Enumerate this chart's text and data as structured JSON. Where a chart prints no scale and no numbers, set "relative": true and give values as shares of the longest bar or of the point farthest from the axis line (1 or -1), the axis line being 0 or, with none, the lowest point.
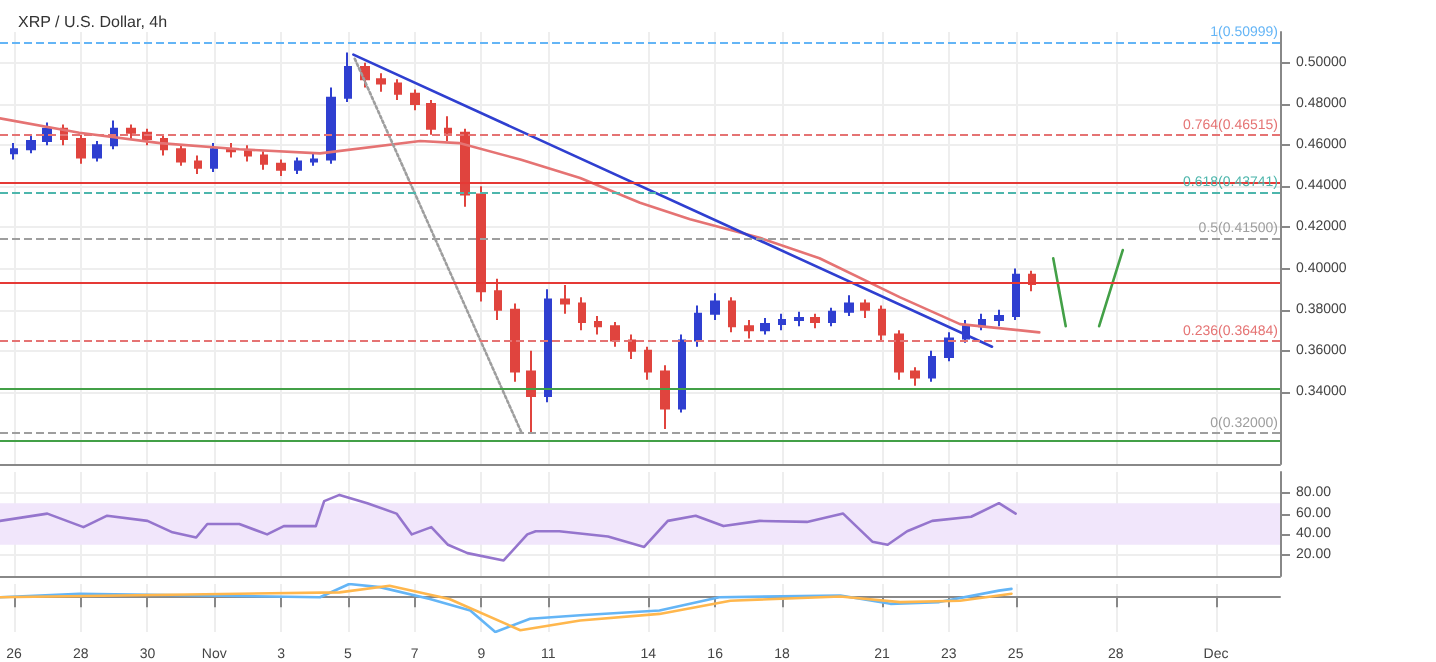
{
  "chart_data": [
    {
      "type": "candlestick",
      "title": "XRP / U.S. Dollar, 4h",
      "tick_labels": "y",
      "grid": true,
      "x": [
        "--10-26T00:00",
        "--10-26T12:00",
        "--10-27T00:00",
        "--10-27T12:00",
        "--10-28T00:00",
        "--10-28T12:00",
        "--10-29T00:00",
        "--10-29T12:00",
        "--10-30T00:00",
        "--10-30T12:00",
        "--10-31T00:00",
        "--10-31T12:00",
        "--11-01T00:00",
        "--11-01T12:00",
        "--11-02T00:00",
        "--11-02T12:00",
        "--11-03T00:00",
        "--11-03T12:00",
        "--11-04T00:00",
        "--11-04T12:00",
        "--11-05T00:00",
        "--11-05T12:00",
        "--11-06T00:00",
        "--11-06T12:00",
        "--11-07T00:00",
        "--11-07T12:00",
        "--11-08T00:00",
        "--11-08T12:00",
        "--11-09T00:00",
        "--11-09T12:00",
        "--11-10T00:00",
        "--11-10T12:00",
        "--11-11T00:00",
        "--11-11T12:00",
        "--11-12T00:00",
        "--11-12T12:00",
        "--11-13T00:00",
        "--11-13T12:00",
        "--11-14T00:00",
        "--11-14T12:00",
        "--11-15T00:00",
        "--11-15T12:00",
        "--11-16T00:00",
        "--11-16T12:00",
        "--11-17T00:00",
        "--11-17T12:00",
        "--11-18T00:00",
        "--11-18T12:00",
        "--11-19T00:00",
        "--11-19T12:00",
        "--11-20T00:00",
        "--11-20T12:00",
        "--11-21T00:00",
        "--11-21T12:00",
        "--11-22T00:00",
        "--11-22T12:00",
        "--11-23T00:00",
        "--11-23T12:00",
        "--11-24T00:00",
        "--11-24T12:00",
        "--11-25T00:00",
        "--11-25T12:00"
      ],
      "ohlc": [
        [
          0.456,
          0.461,
          0.453,
          0.458
        ],
        [
          0.458,
          0.465,
          0.456,
          0.462
        ],
        [
          0.462,
          0.471,
          0.46,
          0.468
        ],
        [
          0.468,
          0.47,
          0.46,
          0.463
        ],
        [
          0.463,
          0.465,
          0.451,
          0.454
        ],
        [
          0.454,
          0.462,
          0.452,
          0.46
        ],
        [
          0.46,
          0.472,
          0.458,
          0.468
        ],
        [
          0.468,
          0.47,
          0.463,
          0.466
        ],
        [
          0.466,
          0.468,
          0.46,
          0.463
        ],
        [
          0.463,
          0.465,
          0.455,
          0.458
        ],
        [
          0.458,
          0.46,
          0.45,
          0.452
        ],
        [
          0.452,
          0.455,
          0.446,
          0.449
        ],
        [
          0.449,
          0.461,
          0.447,
          0.458
        ],
        [
          0.458,
          0.461,
          0.454,
          0.457
        ],
        [
          0.457,
          0.46,
          0.452,
          0.455
        ],
        [
          0.455,
          0.457,
          0.448,
          0.451
        ],
        [
          0.451,
          0.453,
          0.445,
          0.448
        ],
        [
          0.448,
          0.454,
          0.446,
          0.452
        ],
        [
          0.452,
          0.456,
          0.45,
          0.453
        ],
        [
          0.453,
          0.488,
          0.451,
          0.483
        ],
        [
          0.483,
          0.505,
          0.481,
          0.498
        ],
        [
          0.498,
          0.5,
          0.488,
          0.492
        ],
        [
          0.492,
          0.495,
          0.486,
          0.49
        ],
        [
          0.49,
          0.492,
          0.482,
          0.485
        ],
        [
          0.485,
          0.487,
          0.477,
          0.48
        ],
        [
          0.48,
          0.482,
          0.465,
          0.468
        ],
        [
          0.468,
          0.474,
          0.462,
          0.466
        ],
        [
          0.466,
          0.468,
          0.43,
          0.436
        ],
        [
          0.436,
          0.44,
          0.384,
          0.389
        ],
        [
          0.389,
          0.395,
          0.375,
          0.38
        ],
        [
          0.38,
          0.383,
          0.345,
          0.35
        ],
        [
          0.35,
          0.36,
          0.32,
          0.338
        ],
        [
          0.338,
          0.39,
          0.335,
          0.385
        ],
        [
          0.385,
          0.392,
          0.378,
          0.383
        ],
        [
          0.383,
          0.386,
          0.37,
          0.374
        ],
        [
          0.374,
          0.377,
          0.368,
          0.372
        ],
        [
          0.372,
          0.374,
          0.362,
          0.365
        ],
        [
          0.365,
          0.368,
          0.356,
          0.36
        ],
        [
          0.36,
          0.362,
          0.346,
          0.35
        ],
        [
          0.35,
          0.353,
          0.322,
          0.332
        ],
        [
          0.332,
          0.368,
          0.33,
          0.365
        ],
        [
          0.365,
          0.382,
          0.362,
          0.378
        ],
        [
          0.378,
          0.388,
          0.375,
          0.384
        ],
        [
          0.384,
          0.386,
          0.369,
          0.372
        ],
        [
          0.372,
          0.375,
          0.366,
          0.37
        ],
        [
          0.37,
          0.376,
          0.368,
          0.373
        ],
        [
          0.373,
          0.378,
          0.37,
          0.375
        ],
        [
          0.375,
          0.379,
          0.372,
          0.376
        ],
        [
          0.376,
          0.378,
          0.371,
          0.374
        ],
        [
          0.374,
          0.381,
          0.372,
          0.379
        ],
        [
          0.379,
          0.387,
          0.377,
          0.383
        ],
        [
          0.383,
          0.385,
          0.376,
          0.38
        ],
        [
          0.38,
          0.382,
          0.365,
          0.368
        ],
        [
          0.368,
          0.37,
          0.346,
          0.35
        ],
        [
          0.35,
          0.352,
          0.343,
          0.347
        ],
        [
          0.347,
          0.36,
          0.345,
          0.357
        ],
        [
          0.357,
          0.369,
          0.355,
          0.366
        ],
        [
          0.366,
          0.375,
          0.364,
          0.372
        ],
        [
          0.372,
          0.378,
          0.37,
          0.375
        ],
        [
          0.375,
          0.38,
          0.372,
          0.377
        ],
        [
          0.377,
          0.4,
          0.375,
          0.397
        ],
        [
          0.397,
          0.399,
          0.389,
          0.3925
        ]
      ],
      "colors": [
        "#2f3fd0",
        "#2f3fd0",
        "#2f3fd0",
        "#e0443e",
        "#e0443e",
        "#2f3fd0",
        "#2f3fd0",
        "#e0443e",
        "#e0443e",
        "#e0443e",
        "#e0443e",
        "#e0443e",
        "#2f3fd0",
        "#e0443e",
        "#e0443e",
        "#e0443e",
        "#e0443e",
        "#2f3fd0",
        "#2f3fd0",
        "#2f3fd0",
        "#2f3fd0",
        "#e0443e",
        "#e0443e",
        "#e0443e",
        "#e0443e",
        "#e0443e",
        "#e0443e",
        "#e0443e",
        "#e0443e",
        "#e0443e",
        "#e0443e",
        "#e0443e",
        "#2f3fd0",
        "#e0443e",
        "#e0443e",
        "#e0443e",
        "#e0443e",
        "#e0443e",
        "#e0443e",
        "#e0443e",
        "#2f3fd0",
        "#2f3fd0",
        "#2f3fd0",
        "#e0443e",
        "#e0443e",
        "#2f3fd0",
        "#2f3fd0",
        "#2f3fd0",
        "#e0443e",
        "#2f3fd0",
        "#2f3fd0",
        "#e0443e",
        "#e0443e",
        "#e0443e",
        "#e0443e",
        "#2f3fd0",
        "#2f3fd0",
        "#2f3fd0",
        "#2f3fd0",
        "#2f3fd0",
        "#2f3fd0",
        "#e0443e"
      ],
      "series": [
        {
          "type": "line",
          "color": "#e57373",
          "x": [
            "--10-25T14:00",
            "--10-27T23:00",
            "--10-30T09:00",
            "--11-01T18:00",
            "--11-04T04:00",
            "--11-07T04:00",
            "--11-08T08:00",
            "--11-10T04:00",
            "--11-11T23:00",
            "--11-13T18:00",
            "--11-15T06:00",
            "--11-17T08:00",
            "--11-19T03:00",
            "--11-21T13:00",
            "--11-23T08:00",
            "--11-25T17:00"
          ],
          "values": [
            0.473,
            0.466,
            0.461,
            0.458,
            0.456,
            0.462,
            0.461,
            0.453,
            0.444,
            0.432,
            0.424,
            0.415,
            0.405,
            0.386,
            0.373,
            0.369
          ]
        },
        {
          "type": "line",
          "color": "#2f3fd0",
          "x": [
            "--11-05T04:00",
            "--11-24T07:00"
          ],
          "values": [
            0.504,
            0.362
          ]
        },
        {
          "type": "line",
          "color": "#9e9e9e",
          "line_style": "dotted",
          "x": [
            "--11-05T05:00",
            "--11-10T05:00"
          ],
          "values": [
            0.502,
            0.32
          ]
        },
        {
          "type": "line",
          "color": "#43a047",
          "x": [
            "--11-26T03:00",
            "--11-26T12:00",
            "--11-27T00:00",
            "--11-27T12:00",
            "--11-28T05:00"
          ],
          "values": [
            0.405,
            0.372,
            null,
            0.372,
            0.409
          ]
        }
      ],
      "ref_lines": [
        {
          "axis": "y",
          "value": 0.50999,
          "label": "1(0.50999)",
          "color": "#64b5f6",
          "line_style": "dashed"
        },
        {
          "axis": "y",
          "value": 0.46515,
          "label": "0.764(0.46515)",
          "color": "#e57373",
          "line_style": "dashed"
        },
        {
          "axis": "y",
          "value": 0.442,
          "color": "#e53935",
          "line_style": "solid"
        },
        {
          "axis": "y",
          "value": 0.43741,
          "label": "0.618(0.43741)",
          "color": "#4db6ac",
          "line_style": "dashed"
        },
        {
          "axis": "y",
          "value": 0.415,
          "label": "0.5(0.41500)",
          "color": "#9e9e9e",
          "line_style": "dashed"
        },
        {
          "axis": "y",
          "value": 0.393,
          "color": "#e53935",
          "line_style": "solid"
        },
        {
          "axis": "y",
          "value": 0.36484,
          "label": "0.236(0.36484)",
          "color": "#e57373",
          "line_style": "dashed"
        },
        {
          "axis": "y",
          "value": 0.342,
          "color": "#43a047",
          "line_style": "solid"
        },
        {
          "axis": "y",
          "value": 0.32,
          "label": "0(0.32000)",
          "color": "#9e9e9e",
          "line_style": "dashed"
        },
        {
          "axis": "y",
          "value": 0.316,
          "color": "#43a047",
          "line_style": "solid"
        }
      ],
      "xlim": [
        "--10-25T14:00",
        "--12-02T22:00"
      ],
      "xticks": [
        {
          "value": "--10-26",
          "label": "26"
        },
        {
          "value": "--10-28",
          "label": "28"
        },
        {
          "value": "--10-30",
          "label": "30"
        },
        {
          "value": "--11-01",
          "label": "Nov"
        },
        {
          "value": "--11-03",
          "label": "3"
        },
        {
          "value": "--11-05",
          "label": "5"
        },
        {
          "value": "--11-07",
          "label": "7"
        },
        {
          "value": "--11-09",
          "label": "9"
        },
        {
          "value": "--11-11",
          "label": "11"
        },
        {
          "value": "--11-14",
          "label": "14"
        },
        {
          "value": "--11-16",
          "label": "16"
        },
        {
          "value": "--11-18",
          "label": "18"
        },
        {
          "value": "--11-21",
          "label": "21"
        },
        {
          "value": "--11-23",
          "label": "23"
        },
        {
          "value": "--11-25",
          "label": "25"
        },
        {
          "value": "--11-28",
          "label": "28"
        },
        {
          "value": "--12-01",
          "label": "Dec"
        }
      ],
      "ylim": [
        0.305,
        0.515
      ],
      "yticks": [
        {
          "value": 0.34,
          "label": "0.34000"
        },
        {
          "value": 0.36,
          "label": "0.36000"
        },
        {
          "value": 0.38,
          "label": "0.38000"
        },
        {
          "value": 0.4,
          "label": "0.40000"
        },
        {
          "value": 0.42,
          "label": "0.42000"
        },
        {
          "value": 0.44,
          "label": "0.44000"
        },
        {
          "value": 0.46,
          "label": "0.46000"
        },
        {
          "value": 0.48,
          "label": "0.48000"
        },
        {
          "value": 0.5,
          "label": "0.50000"
        }
      ]
    },
    {
      "type": "line",
      "tick_labels": "y",
      "grid": true,
      "series": [
        {
          "color": "#9575cd",
          "x": [
            "--10-25T14:00",
            "--10-27T00:00",
            "--10-28T02:00",
            "--10-28T19:00",
            "--10-30T00:00",
            "--10-30T18:00",
            "--10-31T11:00",
            "--10-31T19:00",
            "--11-01T18:00",
            "--11-02T14:00",
            "--11-03T02:00",
            "--11-04T01:00",
            "--11-04T07:00",
            "--11-04T18:00",
            "--11-05T14:00",
            "--11-06T11:00",
            "--11-06T22:00",
            "--11-07T12:00",
            "--11-08T00:00",
            "--11-08T14:00",
            "--11-09T16:00",
            "--11-10T09:00",
            "--11-10T15:00",
            "--11-11T08:00",
            "--11-12T19:00",
            "--11-13T21:00",
            "--11-14T14:00",
            "--11-15T10:00",
            "--11-16T06:00",
            "--11-17T08:00",
            "--11-18T18:00",
            "--11-19T20:00",
            "--11-20T17:00",
            "--11-21T04:00",
            "--11-21T18:00",
            "--11-22T12:00",
            "--11-23T16:00",
            "--11-24T12:00",
            "--11-25T00:00"
          ],
          "values": [
            53,
            60,
            47,
            58,
            53,
            42,
            37,
            50,
            50,
            40,
            48,
            48,
            72,
            78,
            70,
            60,
            40,
            47,
            30,
            22,
            15,
            40,
            43,
            43,
            38,
            28,
            53,
            58,
            48,
            53,
            52,
            60,
            33,
            30,
            43,
            53,
            57,
            70,
            60
          ]
        }
      ],
      "bands": [
        {
          "axis": "y",
          "from": 30,
          "to": 70,
          "color": "#f1e6fb"
        }
      ],
      "xlim": [
        "--10-25T14:00",
        "--12-02T22:00"
      ],
      "xticks": [
        {
          "value": "--10-26",
          "label": "26"
        },
        {
          "value": "--10-28",
          "label": "28"
        },
        {
          "value": "--10-30",
          "label": "30"
        },
        {
          "value": "--11-01",
          "label": "Nov"
        },
        {
          "value": "--11-03",
          "label": "3"
        },
        {
          "value": "--11-05",
          "label": "5"
        },
        {
          "value": "--11-07",
          "label": "7"
        },
        {
          "value": "--11-09",
          "label": "9"
        },
        {
          "value": "--11-11",
          "label": "11"
        },
        {
          "value": "--11-14",
          "label": "14"
        },
        {
          "value": "--11-16",
          "label": "16"
        },
        {
          "value": "--11-18",
          "label": "18"
        },
        {
          "value": "--11-21",
          "label": "21"
        },
        {
          "value": "--11-23",
          "label": "23"
        },
        {
          "value": "--11-25",
          "label": "25"
        },
        {
          "value": "--11-28",
          "label": "28"
        },
        {
          "value": "--12-01",
          "label": "Dec"
        }
      ],
      "ylim": [
        0,
        100
      ],
      "yticks": [
        {
          "value": 20,
          "label": "20.00"
        },
        {
          "value": 40,
          "label": "40.00"
        },
        {
          "value": 60,
          "label": "60.00"
        },
        {
          "value": 80,
          "label": "80.00"
        }
      ]
    },
    {
      "type": "line",
      "relative": true,
      "tick_labels": "x",
      "grid": "x",
      "series": [
        {
          "color": "#64b5f6",
          "x": [
            "--10-25T14:00",
            "--10-27T23:00",
            "--11-04T04:00",
            "--11-05T01:00",
            "--11-05T23:00",
            "--11-07T11:00",
            "--11-08T16:00",
            "--11-09T10:00",
            "--11-10T11:00",
            "--11-11T23:00",
            "--11-14T08:00",
            "--11-16T03:00",
            "--11-19T18:00",
            "--11-21T06:00",
            "--11-22T17:00",
            "--11-24T12:00",
            "--11-24T21:00"
          ],
          "values": [
            0,
            0.1,
            0,
            0.38,
            0.29,
            -0.05,
            -0.38,
            -1,
            -0.62,
            -0.52,
            -0.38,
            0,
            0.05,
            -0.19,
            -0.14,
            0.19,
            0.24
          ]
        },
        {
          "color": "#ffb74d",
          "x": [
            "--10-25T14:00",
            "--11-04T18:00",
            "--11-06T06:00",
            "--11-08T01:00",
            "--11-10T04:00",
            "--11-11T23:00",
            "--11-14T08:00",
            "--11-16T11:00",
            "--11-19T18:00",
            "--11-21T13:00",
            "--11-23T08:00",
            "--11-24T21:00"
          ],
          "values": [
            0,
            0.14,
            0.33,
            -0.05,
            -0.95,
            -0.67,
            -0.48,
            -0.1,
            0.02,
            -0.14,
            -0.1,
            0.1
          ]
        }
      ],
      "xlim": [
        "--10-25T14:00",
        "--12-02T22:00"
      ],
      "xticks": [
        {
          "value": "--10-26",
          "label": "26"
        },
        {
          "value": "--10-28",
          "label": "28"
        },
        {
          "value": "--10-30",
          "label": "30"
        },
        {
          "value": "--11-01",
          "label": "Nov"
        },
        {
          "value": "--11-03",
          "label": "3"
        },
        {
          "value": "--11-05",
          "label": "5"
        },
        {
          "value": "--11-07",
          "label": "7"
        },
        {
          "value": "--11-09",
          "label": "9"
        },
        {
          "value": "--11-11",
          "label": "11"
        },
        {
          "value": "--11-14",
          "label": "14"
        },
        {
          "value": "--11-16",
          "label": "16"
        },
        {
          "value": "--11-18",
          "label": "18"
        },
        {
          "value": "--11-21",
          "label": "21"
        },
        {
          "value": "--11-23",
          "label": "23"
        },
        {
          "value": "--11-25",
          "label": "25"
        },
        {
          "value": "--11-28",
          "label": "28"
        },
        {
          "value": "--12-01",
          "label": "Dec"
        }
      ]
    }
  ]
}
